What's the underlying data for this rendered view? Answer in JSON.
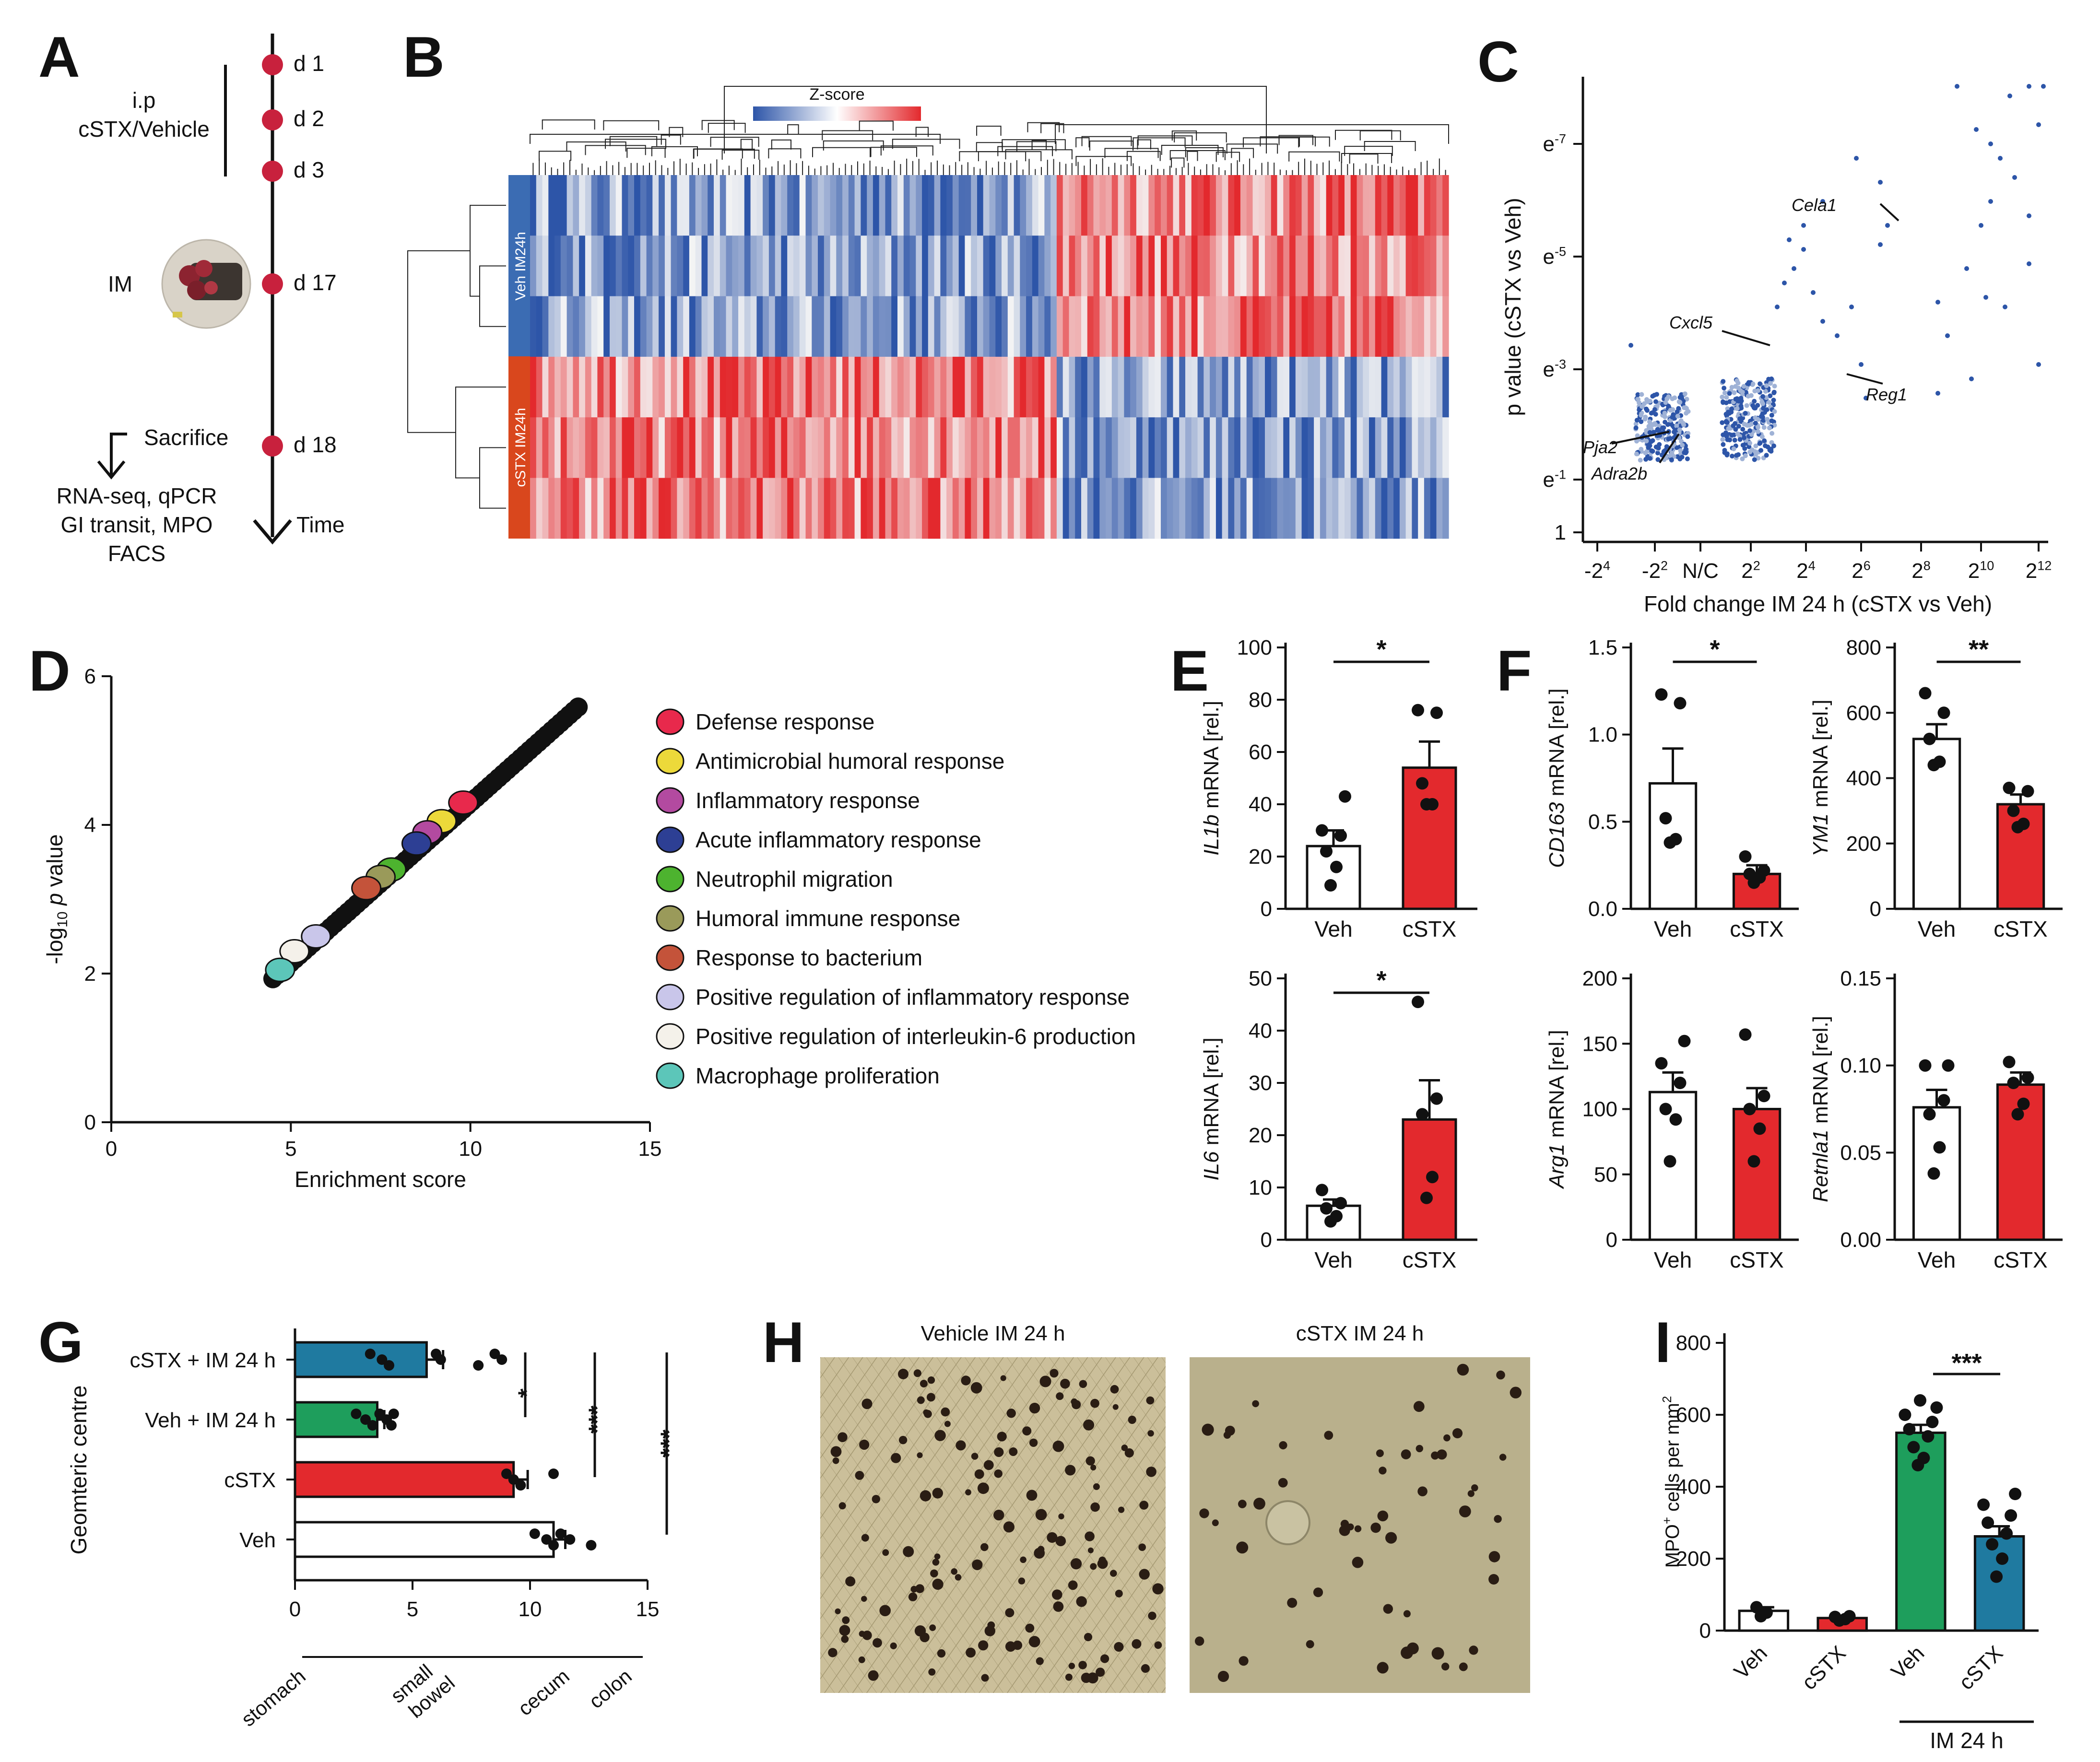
{
  "colors": {
    "red": "#e3292d",
    "teal": "#1f7aa0",
    "green": "#1e9e5c",
    "blue_dark": "#2d55a8",
    "blue_light": "#9fb2d6",
    "marker": "#c8213d",
    "veh_bar": "#3b6cb3",
    "cstx_bar": "#d9471d"
  },
  "panel_letters": {
    "a": "A",
    "b": "B",
    "c": "C",
    "d": "D",
    "e": "E",
    "f": "F",
    "g": "G",
    "h": "H",
    "i": "I"
  },
  "panel_a": {
    "days": [
      "d 1",
      "d 2",
      "d 3",
      "d 17",
      "d 18"
    ],
    "ip_line1": "i.p",
    "ip_line2": "cSTX/Vehicle",
    "im_label": "IM",
    "sacrifice": "Sacrifice",
    "readouts": [
      "RNA-seq, qPCR",
      "GI transit, MPO",
      "FACS"
    ],
    "time_label": "Time"
  },
  "panel_b": {
    "zscore_label": "Z-score",
    "group_veh": "Veh IM24h",
    "group_cstx": "cSTX IM24h"
  },
  "panel_c": {
    "ylabel": "p value (cSTX vs Veh)",
    "xlabel": "Fold change IM 24 h (cSTX vs Veh)",
    "y_ticks": [
      {
        "base": "1",
        "exp": ""
      },
      {
        "base": "e",
        "exp": "-1"
      },
      {
        "base": "e",
        "exp": "-3"
      },
      {
        "base": "e",
        "exp": "-5"
      },
      {
        "base": "e",
        "exp": "-7"
      }
    ],
    "x_ticks": [
      {
        "base": "-2",
        "exp": "4"
      },
      {
        "base": "-2",
        "exp": "2"
      },
      {
        "base": "N/C",
        "exp": ""
      },
      {
        "base": "2",
        "exp": "2"
      },
      {
        "base": "2",
        "exp": "4"
      },
      {
        "base": "2",
        "exp": "6"
      },
      {
        "base": "2",
        "exp": "8"
      },
      {
        "base": "2",
        "exp": "10"
      },
      {
        "base": "2",
        "exp": "12"
      }
    ],
    "genes": [
      "Cela1",
      "Cxcl5",
      "Reg1",
      "Pja2",
      "Adra2b"
    ]
  },
  "chart_data": [
    {
      "panel": "D",
      "type": "scatter",
      "xlabel": "Enrichment score",
      "ylabel": "-log10 p value",
      "xlim": [
        0,
        15
      ],
      "ylim": [
        0,
        6
      ],
      "x_ticks": [
        "0",
        "5",
        "10",
        "15"
      ],
      "y_ticks": [
        "0",
        "2",
        "4",
        "6"
      ],
      "highlighted": [
        {
          "term": "Defense response",
          "x": 9.8,
          "y": 4.3,
          "color": "#e8294c"
        },
        {
          "term": "Antimicrobial humoral response",
          "x": 9.2,
          "y": 4.05,
          "color": "#ecd93a"
        },
        {
          "term": "Inflammatory response",
          "x": 8.8,
          "y": 3.9,
          "color": "#b34aa0"
        },
        {
          "term": "Acute inflammatory response",
          "x": 8.5,
          "y": 3.75,
          "color": "#2d3f94"
        },
        {
          "term": "Neutrophil migration",
          "x": 7.8,
          "y": 3.4,
          "color": "#4db32f"
        },
        {
          "term": "Humoral immune response",
          "x": 7.5,
          "y": 3.3,
          "color": "#9a9a5a"
        },
        {
          "term": "Response to bacterium",
          "x": 7.1,
          "y": 3.15,
          "color": "#c4533a"
        },
        {
          "term": "Positive regulation of inflammatory response",
          "x": 5.7,
          "y": 2.5,
          "color": "#c9c6ea"
        },
        {
          "term": "Positive regulation of interleukin-6 production",
          "x": 5.1,
          "y": 2.3,
          "color": "#f4f1ea"
        },
        {
          "term": "Macrophage proliferation",
          "x": 4.7,
          "y": 2.05,
          "color": "#5cc6b9"
        }
      ]
    },
    {
      "panel": "E1",
      "type": "bar",
      "ylabel_gene": "IL1b",
      "ylabel_rest": " mRNA [rel.]",
      "categories": [
        "Veh",
        "cSTX"
      ],
      "values": [
        24,
        54
      ],
      "sem": [
        6,
        10
      ],
      "ylim": [
        0,
        100
      ],
      "y_ticks": [
        "0",
        "20",
        "40",
        "60",
        "80",
        "100"
      ],
      "points": [
        [
          9,
          16,
          22,
          28,
          30,
          43
        ],
        [
          40,
          40,
          48,
          75,
          76
        ]
      ],
      "signif": "*"
    },
    {
      "panel": "E2",
      "type": "bar",
      "ylabel_gene": "IL6",
      "ylabel_rest": " mRNA [rel.]",
      "categories": [
        "Veh",
        "cSTX"
      ],
      "values": [
        6.5,
        23
      ],
      "sem": [
        1.2,
        7.5
      ],
      "ylim": [
        0,
        50
      ],
      "y_ticks": [
        "0",
        "10",
        "20",
        "30",
        "40",
        "50"
      ],
      "points": [
        [
          3.5,
          4.5,
          6,
          7,
          9.5
        ],
        [
          8,
          12,
          24,
          27,
          45.5
        ]
      ],
      "signif": "*"
    },
    {
      "panel": "F1",
      "type": "bar",
      "ylabel_gene": "CD163",
      "ylabel_rest": " mRNA [rel.]",
      "categories": [
        "Veh",
        "cSTX"
      ],
      "values": [
        0.72,
        0.2
      ],
      "sem": [
        0.2,
        0.05
      ],
      "ylim": [
        0,
        1.5
      ],
      "y_ticks": [
        "0.0",
        "0.5",
        "1.0",
        "1.5"
      ],
      "points": [
        [
          0.38,
          0.4,
          0.52,
          1.18,
          1.23
        ],
        [
          0.15,
          0.18,
          0.2,
          0.22,
          0.3
        ]
      ],
      "signif": "*"
    },
    {
      "panel": "F2",
      "type": "bar",
      "ylabel_gene": "YM1",
      "ylabel_rest": " mRNA [rel.]",
      "categories": [
        "Veh",
        "cSTX"
      ],
      "values": [
        520,
        320
      ],
      "sem": [
        45,
        30
      ],
      "ylim": [
        0,
        800
      ],
      "y_ticks": [
        "0",
        "200",
        "400",
        "600",
        "800"
      ],
      "points": [
        [
          440,
          450,
          520,
          600,
          660
        ],
        [
          250,
          260,
          300,
          360,
          370
        ]
      ],
      "signif": "**"
    },
    {
      "panel": "F3",
      "type": "bar",
      "ylabel_gene": "Arg1",
      "ylabel_rest": " mRNA [rel.]",
      "categories": [
        "Veh",
        "cSTX"
      ],
      "values": [
        113,
        100
      ],
      "sem": [
        15,
        16
      ],
      "ylim": [
        0,
        200
      ],
      "y_ticks": [
        "0",
        "50",
        "100",
        "150",
        "200"
      ],
      "points": [
        [
          60,
          92,
          100,
          120,
          135,
          152
        ],
        [
          60,
          85,
          100,
          110,
          157
        ]
      ],
      "signif": ""
    },
    {
      "panel": "F4",
      "type": "bar",
      "ylabel_gene": "Retnla1",
      "ylabel_rest": " mRNA [rel.]",
      "categories": [
        "Veh",
        "cSTX"
      ],
      "values": [
        0.076,
        0.089
      ],
      "sem": [
        0.01,
        0.007
      ],
      "ylim": [
        0,
        0.15
      ],
      "y_ticks": [
        "0.00",
        "0.05",
        "0.10",
        "0.15"
      ],
      "points": [
        [
          0.038,
          0.053,
          0.072,
          0.08,
          0.1,
          0.1
        ],
        [
          0.072,
          0.078,
          0.09,
          0.093,
          0.102
        ]
      ],
      "signif": ""
    },
    {
      "panel": "G",
      "type": "bar",
      "orientation": "horizontal",
      "ylabel": "Geomteric centre",
      "categories": [
        "cSTX + IM 24 h",
        "Veh + IM 24 h",
        "cSTX",
        "Veh"
      ],
      "values": [
        5.6,
        3.5,
        9.3,
        11.0
      ],
      "sem": [
        0.7,
        0.3,
        0.6,
        0.5
      ],
      "colors": [
        "#1f7aa0",
        "#1e9e5c",
        "#e3292d",
        "#ffffff"
      ],
      "points": [
        [
          3.2,
          3.7,
          4.0,
          6.0,
          6.2,
          7.8,
          8.5,
          8.8
        ],
        [
          2.6,
          3.0,
          3.3,
          3.6,
          3.9,
          4.1,
          4.2
        ],
        [
          9.0,
          9.3,
          9.6,
          11.0
        ],
        [
          10.2,
          10.7,
          11.0,
          11.3,
          11.7,
          12.6
        ]
      ],
      "xlim": [
        0,
        15
      ],
      "x_ticks": [
        "0",
        "5",
        "10",
        "15"
      ],
      "signif": [
        "*",
        "***",
        "***"
      ],
      "segments": [
        "stomach",
        "small\nbowel",
        "cecum",
        "colon"
      ]
    },
    {
      "panel": "I",
      "type": "bar",
      "ylabel": "MPO+ cells per mm2",
      "categories": [
        "Veh",
        "cSTX",
        "Veh",
        "cSTX"
      ],
      "values": [
        55,
        35,
        550,
        262
      ],
      "sem": [
        10,
        5,
        22,
        28
      ],
      "colors": [
        "#ffffff",
        "#e3292d",
        "#1e9e5c",
        "#1f7aa0"
      ],
      "points": [
        [
          40,
          50,
          65
        ],
        [
          28,
          32,
          38,
          40
        ],
        [
          460,
          480,
          510,
          540,
          560,
          580,
          600,
          620,
          640
        ],
        [
          150,
          200,
          240,
          270,
          300,
          320,
          350,
          380
        ]
      ],
      "ylim": [
        0,
        800
      ],
      "y_ticks": [
        "0",
        "200",
        "400",
        "600",
        "800"
      ],
      "group_label": "IM 24 h",
      "signif": "***"
    }
  ],
  "panel_h": {
    "vehicle_title": "Vehicle IM 24 h",
    "cstx_title": "cSTX IM 24 h"
  }
}
